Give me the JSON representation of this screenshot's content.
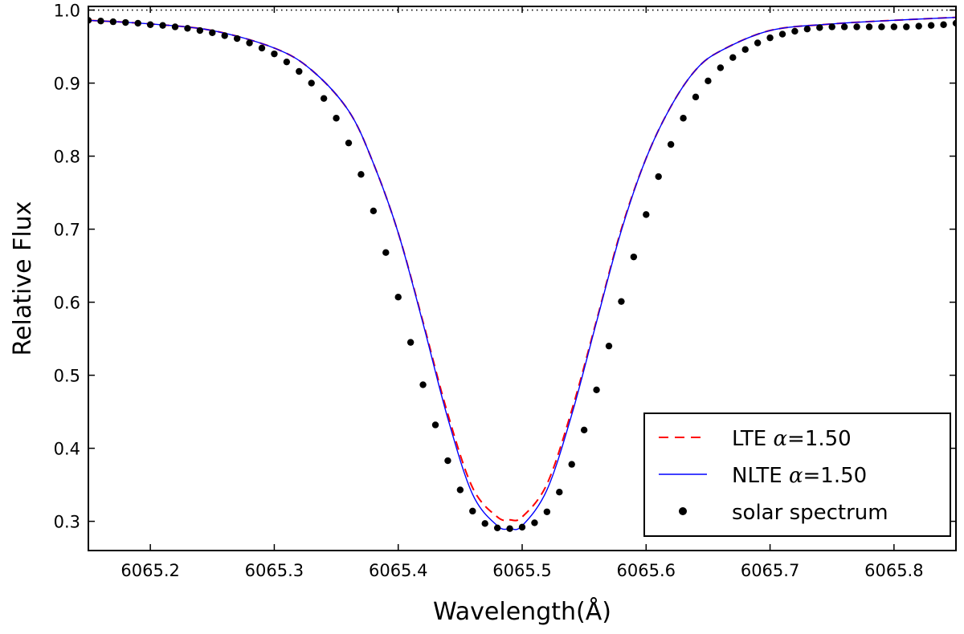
{
  "chart_data": {
    "type": "line",
    "title": "",
    "xlabel": "Wavelength(Å)",
    "ylabel": "Relative Flux",
    "xlim": [
      6065.15,
      6065.85
    ],
    "ylim": [
      0.26,
      1.005
    ],
    "xticks": [
      6065.2,
      6065.3,
      6065.4,
      6065.5,
      6065.6,
      6065.7,
      6065.8
    ],
    "xtick_labels": [
      "6065.2",
      "6065.3",
      "6065.4",
      "6065.5",
      "6065.6",
      "6065.7",
      "6065.8"
    ],
    "yticks": [
      0.3,
      0.4,
      0.5,
      0.6,
      0.7,
      0.8,
      0.9,
      1.0
    ],
    "ytick_labels": [
      "0.3",
      "0.4",
      "0.5",
      "0.6",
      "0.7",
      "0.8",
      "0.9",
      "1.0"
    ],
    "reference_line": {
      "y": 1.0,
      "style": "dotted"
    },
    "grid": false,
    "legend_position": "lower-right",
    "series": [
      {
        "name": "LTE α=1.50",
        "legend_prefix": "LTE ",
        "legend_symbol": "α",
        "legend_suffix": "=1.50",
        "style": "dashed",
        "color": "#ff0000",
        "x": [
          6065.15,
          6065.2,
          6065.25,
          6065.3,
          6065.33,
          6065.36,
          6065.38,
          6065.4,
          6065.42,
          6065.44,
          6065.46,
          6065.48,
          6065.49,
          6065.5,
          6065.52,
          6065.54,
          6065.56,
          6065.58,
          6065.6,
          6065.62,
          6065.64,
          6065.66,
          6065.7,
          6065.75,
          6065.8,
          6065.85
        ],
        "y": [
          0.986,
          0.981,
          0.972,
          0.948,
          0.918,
          0.862,
          0.79,
          0.695,
          0.573,
          0.447,
          0.346,
          0.306,
          0.302,
          0.306,
          0.351,
          0.452,
          0.575,
          0.7,
          0.797,
          0.868,
          0.918,
          0.944,
          0.972,
          0.981,
          0.986,
          0.99
        ]
      },
      {
        "name": "NLTE α=1.50",
        "legend_prefix": "NLTE ",
        "legend_symbol": "α",
        "legend_suffix": "=1.50",
        "style": "solid",
        "color": "#0000ff",
        "x": [
          6065.15,
          6065.2,
          6065.25,
          6065.3,
          6065.33,
          6065.36,
          6065.38,
          6065.4,
          6065.42,
          6065.44,
          6065.46,
          6065.48,
          6065.49,
          6065.5,
          6065.52,
          6065.54,
          6065.56,
          6065.58,
          6065.6,
          6065.62,
          6065.64,
          6065.66,
          6065.7,
          6065.75,
          6065.8,
          6065.85
        ],
        "y": [
          0.986,
          0.981,
          0.972,
          0.948,
          0.918,
          0.862,
          0.79,
          0.695,
          0.571,
          0.441,
          0.337,
          0.294,
          0.29,
          0.294,
          0.343,
          0.446,
          0.573,
          0.698,
          0.797,
          0.868,
          0.918,
          0.944,
          0.972,
          0.981,
          0.986,
          0.99
        ]
      },
      {
        "name": "solar spectrum",
        "style": "markers",
        "color": "#000000",
        "x": [
          6065.15,
          6065.16,
          6065.17,
          6065.18,
          6065.19,
          6065.2,
          6065.21,
          6065.22,
          6065.23,
          6065.24,
          6065.25,
          6065.26,
          6065.27,
          6065.28,
          6065.29,
          6065.3,
          6065.31,
          6065.32,
          6065.33,
          6065.34,
          6065.35,
          6065.36,
          6065.37,
          6065.38,
          6065.39,
          6065.4,
          6065.41,
          6065.42,
          6065.43,
          6065.44,
          6065.45,
          6065.46,
          6065.47,
          6065.48,
          6065.49,
          6065.5,
          6065.51,
          6065.52,
          6065.53,
          6065.54,
          6065.55,
          6065.56,
          6065.57,
          6065.58,
          6065.59,
          6065.6,
          6065.61,
          6065.62,
          6065.63,
          6065.64,
          6065.65,
          6065.66,
          6065.67,
          6065.68,
          6065.69,
          6065.7,
          6065.71,
          6065.72,
          6065.73,
          6065.74,
          6065.75,
          6065.76,
          6065.77,
          6065.78,
          6065.79,
          6065.8,
          6065.81,
          6065.82,
          6065.83,
          6065.84,
          6065.85
        ],
        "y": [
          0.986,
          0.985,
          0.984,
          0.983,
          0.982,
          0.98,
          0.979,
          0.977,
          0.975,
          0.972,
          0.969,
          0.965,
          0.961,
          0.955,
          0.948,
          0.94,
          0.929,
          0.916,
          0.9,
          0.879,
          0.852,
          0.818,
          0.775,
          0.725,
          0.668,
          0.607,
          0.545,
          0.487,
          0.432,
          0.383,
          0.343,
          0.314,
          0.297,
          0.291,
          0.29,
          0.292,
          0.298,
          0.313,
          0.34,
          0.378,
          0.425,
          0.48,
          0.54,
          0.601,
          0.662,
          0.72,
          0.772,
          0.816,
          0.852,
          0.881,
          0.903,
          0.921,
          0.935,
          0.946,
          0.955,
          0.962,
          0.967,
          0.971,
          0.974,
          0.976,
          0.977,
          0.977,
          0.977,
          0.977,
          0.977,
          0.977,
          0.977,
          0.978,
          0.979,
          0.98,
          0.982
        ]
      }
    ]
  }
}
